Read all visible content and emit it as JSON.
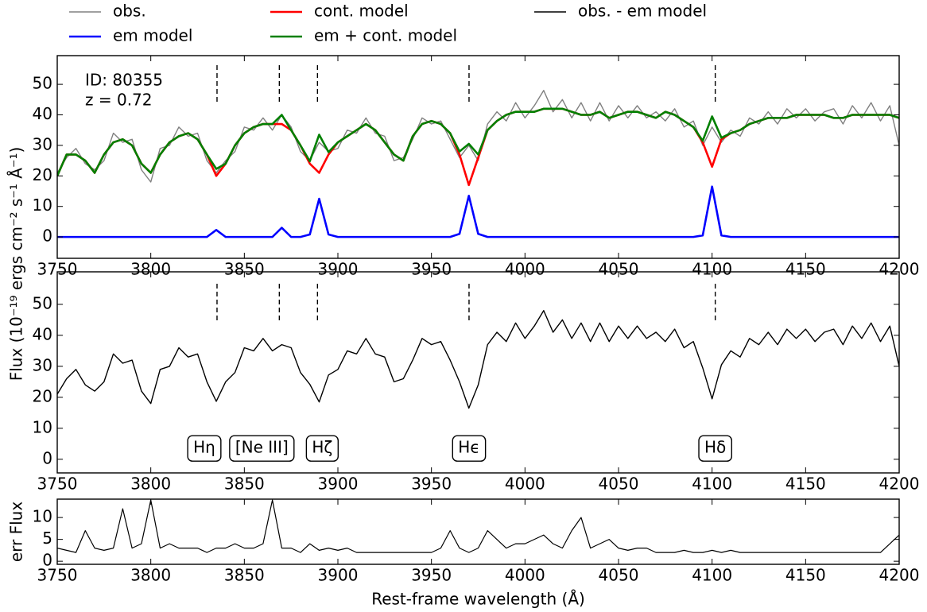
{
  "chart_data": [
    {
      "type": "line",
      "legend": "top",
      "ylabel": "Flux (10⁻¹⁹ ergs cm⁻² s⁻¹ Å⁻¹)",
      "text_annotations": [
        "ID: 80355",
        "z = 0.72"
      ],
      "markers": [
        3835.4,
        3868.7,
        3889.1,
        3970.1,
        4101.7
      ],
      "xlim": [
        3750,
        4200
      ],
      "xticks": [
        3750,
        3800,
        3850,
        3900,
        3950,
        4000,
        4050,
        4100,
        4150,
        4200
      ],
      "ylim": [
        -7,
        59.4
      ],
      "yticks": [
        0,
        10,
        20,
        30,
        40,
        50
      ],
      "x": [
        3750,
        3755,
        3760,
        3765,
        3770,
        3775,
        3780,
        3785,
        3790,
        3795,
        3800,
        3805,
        3810,
        3815,
        3820,
        3825,
        3830,
        3835,
        3840,
        3845,
        3850,
        3855,
        3860,
        3865,
        3870,
        3875,
        3880,
        3885,
        3890,
        3895,
        3900,
        3905,
        3910,
        3915,
        3920,
        3925,
        3930,
        3935,
        3940,
        3945,
        3950,
        3955,
        3960,
        3965,
        3970,
        3975,
        3980,
        3985,
        3990,
        3995,
        4000,
        4005,
        4010,
        4015,
        4020,
        4025,
        4030,
        4035,
        4040,
        4045,
        4050,
        4055,
        4060,
        4065,
        4070,
        4075,
        4080,
        4085,
        4090,
        4095,
        4100,
        4105,
        4110,
        4115,
        4120,
        4125,
        4130,
        4135,
        4140,
        4145,
        4150,
        4155,
        4160,
        4165,
        4170,
        4175,
        4180,
        4185,
        4190,
        4195,
        4200
      ],
      "series": [
        {
          "name": "obs.",
          "color": "#808080",
          "width": 1.4,
          "values": [
            21,
            26,
            29,
            24,
            22,
            25,
            34,
            31,
            32,
            22,
            18,
            29,
            30,
            36,
            33,
            34,
            25,
            21,
            25,
            28,
            36,
            35,
            39,
            35,
            40,
            36,
            28,
            25,
            31,
            28,
            29,
            35,
            34,
            39,
            34,
            33,
            25,
            26,
            32,
            39,
            37,
            38,
            32,
            26,
            30,
            25,
            37,
            41,
            38,
            44,
            39,
            43,
            48,
            41,
            45,
            39,
            44,
            38,
            44,
            38,
            43,
            39,
            43,
            39,
            41,
            38,
            42,
            36,
            38,
            30,
            36,
            31,
            35,
            33,
            39,
            37,
            41,
            37,
            42,
            39,
            42,
            38,
            41,
            42,
            37,
            43,
            39,
            44,
            38,
            43,
            30
          ]
        },
        {
          "name": "em model",
          "color": "#0000ff",
          "width": 2.6,
          "values": [
            0,
            0,
            0,
            0,
            0,
            0,
            0,
            0,
            0,
            0,
            0,
            0,
            0,
            0,
            0,
            0,
            0,
            2.3,
            0,
            0,
            0,
            0,
            0,
            0,
            3,
            0,
            0,
            0.8,
            12.5,
            0.8,
            0,
            0,
            0,
            0,
            0,
            0,
            0,
            0,
            0,
            0,
            0,
            0,
            0,
            1,
            13.5,
            1,
            0,
            0,
            0,
            0,
            0,
            0,
            0,
            0,
            0,
            0,
            0,
            0,
            0,
            0,
            0,
            0,
            0,
            0,
            0,
            0,
            0,
            0,
            0,
            0.5,
            16.5,
            0.5,
            0,
            0,
            0,
            0,
            0,
            0,
            0,
            0,
            0,
            0,
            0,
            0,
            0,
            0,
            0,
            0,
            0,
            0,
            0
          ]
        },
        {
          "name": "cont. model",
          "color": "#ff0000",
          "width": 2.6,
          "values": [
            20,
            27,
            27,
            25,
            21,
            27,
            31,
            32,
            30,
            24,
            21,
            27,
            31,
            33,
            34,
            32,
            27,
            20,
            24,
            30,
            34,
            36,
            37,
            37,
            37,
            35,
            30,
            24,
            21,
            27,
            31,
            33,
            35,
            37,
            35,
            31,
            27,
            25,
            33,
            37,
            38,
            37,
            34,
            27,
            17,
            26,
            35,
            38,
            40,
            41,
            41,
            41,
            42,
            42,
            42,
            41,
            40,
            40,
            41,
            39,
            40,
            41,
            41,
            40,
            39,
            41,
            40,
            38,
            36,
            31,
            23,
            32,
            34,
            35,
            37,
            38,
            39,
            39,
            39,
            40,
            40,
            40,
            40,
            39,
            39,
            40,
            40,
            40,
            40,
            40,
            39
          ]
        },
        {
          "name": "em + cont. model",
          "color": "#008000",
          "width": 2.6,
          "values": [
            20,
            27,
            27,
            25,
            21,
            27,
            31,
            32,
            30,
            24,
            21,
            27,
            31,
            33,
            34,
            32,
            27,
            22.3,
            24,
            30,
            34,
            36,
            37,
            37,
            40,
            35,
            30,
            24.8,
            33.5,
            27.8,
            31,
            33,
            35,
            37,
            35,
            31,
            27,
            25,
            33,
            37,
            38,
            37,
            34,
            28,
            30.5,
            27,
            35,
            38,
            40,
            41,
            41,
            41,
            42,
            42,
            42,
            41,
            40,
            40,
            41,
            39,
            40,
            41,
            41,
            40,
            39,
            41,
            40,
            38,
            36,
            31.5,
            39.5,
            32.5,
            34,
            35,
            37,
            38,
            39,
            39,
            39,
            40,
            40,
            40,
            40,
            39,
            39,
            40,
            40,
            40,
            40,
            40,
            39
          ]
        }
      ]
    },
    {
      "type": "line",
      "markers": [
        3835.4,
        3868.7,
        3889.1,
        3970.1,
        4101.7
      ],
      "marker_labels": [
        "Hη",
        "[Ne III]",
        "Hζ",
        "Hϵ",
        "Hδ"
      ],
      "xlim": [
        3750,
        4200
      ],
      "xticks": [
        3750,
        3800,
        3850,
        3900,
        3950,
        4000,
        4050,
        4100,
        4150,
        4200
      ],
      "ylim": [
        -4.4,
        60.5
      ],
      "yticks": [
        0,
        10,
        20,
        30,
        40,
        50
      ],
      "x": [
        3750,
        3755,
        3760,
        3765,
        3770,
        3775,
        3780,
        3785,
        3790,
        3795,
        3800,
        3805,
        3810,
        3815,
        3820,
        3825,
        3830,
        3835,
        3840,
        3845,
        3850,
        3855,
        3860,
        3865,
        3870,
        3875,
        3880,
        3885,
        3890,
        3895,
        3900,
        3905,
        3910,
        3915,
        3920,
        3925,
        3930,
        3935,
        3940,
        3945,
        3950,
        3955,
        3960,
        3965,
        3970,
        3975,
        3980,
        3985,
        3990,
        3995,
        4000,
        4005,
        4010,
        4015,
        4020,
        4025,
        4030,
        4035,
        4040,
        4045,
        4050,
        4055,
        4060,
        4065,
        4070,
        4075,
        4080,
        4085,
        4090,
        4095,
        4100,
        4105,
        4110,
        4115,
        4120,
        4125,
        4130,
        4135,
        4140,
        4145,
        4150,
        4155,
        4160,
        4165,
        4170,
        4175,
        4180,
        4185,
        4190,
        4195,
        4200
      ],
      "series": [
        {
          "name": "obs. - em model",
          "color": "#000000",
          "width": 1.4,
          "values": [
            21,
            26,
            29,
            24,
            22,
            25,
            34,
            31,
            32,
            22,
            18,
            29,
            30,
            36,
            33,
            34,
            25,
            18.7,
            25,
            28,
            36,
            35,
            39,
            35,
            37,
            36,
            28,
            24.2,
            18.5,
            27.2,
            29,
            35,
            34,
            39,
            34,
            33,
            25,
            26,
            32,
            39,
            37,
            38,
            32,
            25,
            16.5,
            24,
            37,
            41,
            38,
            44,
            39,
            43,
            48,
            41,
            45,
            39,
            44,
            38,
            44,
            38,
            43,
            39,
            43,
            39,
            41,
            38,
            42,
            36,
            38,
            29.5,
            19.5,
            30.5,
            35,
            33,
            39,
            37,
            41,
            37,
            42,
            39,
            42,
            38,
            41,
            42,
            37,
            43,
            39,
            44,
            38,
            43,
            30
          ]
        }
      ]
    },
    {
      "type": "line",
      "ylabel": "err Flux",
      "xlabel": "Rest-frame wavelength (Å)",
      "xlim": [
        3750,
        4200
      ],
      "xticks": [
        3750,
        3800,
        3850,
        3900,
        3950,
        4000,
        4050,
        4100,
        4150,
        4200
      ],
      "ylim": [
        -0.7,
        14.2
      ],
      "yticks": [
        0,
        5,
        10
      ],
      "x": [
        3750,
        3755,
        3760,
        3765,
        3770,
        3775,
        3780,
        3785,
        3790,
        3795,
        3800,
        3805,
        3810,
        3815,
        3820,
        3825,
        3830,
        3835,
        3840,
        3845,
        3850,
        3855,
        3860,
        3865,
        3870,
        3875,
        3880,
        3885,
        3890,
        3895,
        3900,
        3905,
        3910,
        3915,
        3920,
        3925,
        3930,
        3935,
        3940,
        3945,
        3950,
        3955,
        3960,
        3965,
        3970,
        3975,
        3980,
        3985,
        3990,
        3995,
        4000,
        4005,
        4010,
        4015,
        4020,
        4025,
        4030,
        4035,
        4040,
        4045,
        4050,
        4055,
        4060,
        4065,
        4070,
        4075,
        4080,
        4085,
        4090,
        4095,
        4100,
        4105,
        4110,
        4115,
        4120,
        4125,
        4130,
        4135,
        4140,
        4145,
        4150,
        4155,
        4160,
        4165,
        4170,
        4175,
        4180,
        4185,
        4190,
        4195,
        4200
      ],
      "series": [
        {
          "color": "#000000",
          "width": 1.2,
          "values": [
            3,
            2.5,
            2,
            7,
            3,
            2.5,
            3,
            12,
            3,
            4,
            14,
            3,
            4,
            3,
            3,
            3,
            2,
            3,
            3,
            4,
            3,
            3,
            4,
            14,
            3,
            3,
            2,
            4,
            2.5,
            3,
            2.5,
            3,
            2,
            2,
            2,
            2,
            2,
            2,
            2,
            2,
            2,
            3,
            7,
            3,
            2,
            3,
            7,
            5,
            3,
            4,
            4,
            5,
            6,
            4,
            3,
            7,
            10,
            3,
            4,
            5,
            3,
            2.5,
            3,
            3,
            2,
            2,
            2,
            2.5,
            2,
            2,
            2.5,
            2,
            2.5,
            2,
            2,
            2,
            2,
            2,
            2,
            2,
            2,
            2,
            2,
            2,
            2,
            2,
            2,
            2,
            2,
            4,
            6
          ]
        }
      ]
    }
  ]
}
